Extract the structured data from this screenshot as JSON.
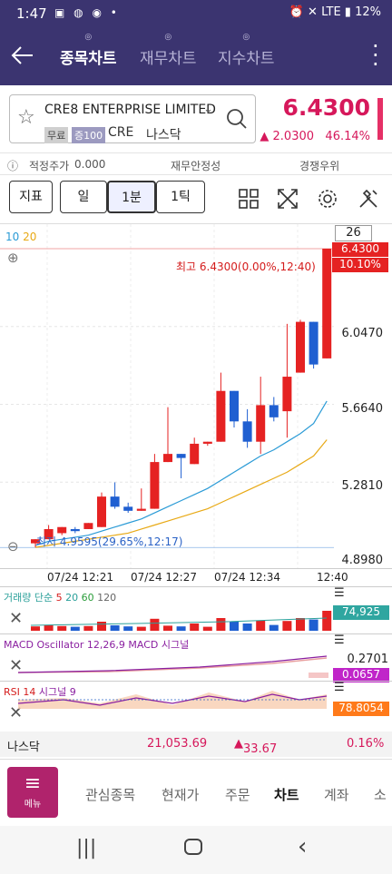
{
  "status": {
    "time": "1:47",
    "battery": "12%",
    "network": "LTE"
  },
  "nav": {
    "tabs": [
      "종목차트",
      "재무차트",
      "지수차트"
    ],
    "active": 0
  },
  "stock": {
    "name": "CRE8 ENTERPRISE LIMITED",
    "badge_free": "무료",
    "badge_margin": "증100",
    "code": "CRE",
    "market": "나스닥",
    "price": "6.4300",
    "change": "2.0300",
    "change_pct": "46.14%"
  },
  "info": {
    "fair_label": "적정주가",
    "fair_value": "0.000",
    "fin_label": "재무안정성",
    "comp_label": "경쟁우위"
  },
  "toolbar": {
    "indicator": "지표",
    "day": "일",
    "min": "1분",
    "tick": "1틱"
  },
  "chart_data": {
    "type": "candlestick",
    "ma_labels": [
      "10",
      "20"
    ],
    "count_box": "26",
    "y_ticks": [
      "6.0470",
      "5.6640",
      "5.2810",
      "4.8980"
    ],
    "y_range": [
      4.898,
      6.43
    ],
    "last_price_tag": "6.4300",
    "last_pct_tag": "10.10%",
    "high_label": "최고 6.4300(0.00%,12:40)",
    "low_label": "최저 4.9595(29.65%,12:17)",
    "x_ticks": [
      "07/24 12:21",
      "07/24 12:27",
      "07/24 12:34",
      "12:40"
    ],
    "candles": [
      {
        "o": 4.98,
        "c": 5.0,
        "h": 5.0,
        "l": 4.96
      },
      {
        "o": 5.0,
        "c": 5.05,
        "h": 5.07,
        "l": 5.0
      },
      {
        "o": 5.03,
        "c": 5.06,
        "h": 5.06,
        "l": 5.02
      },
      {
        "o": 5.05,
        "c": 5.04,
        "h": 5.06,
        "l": 5.03
      },
      {
        "o": 5.05,
        "c": 5.08,
        "h": 5.08,
        "l": 5.05
      },
      {
        "o": 5.06,
        "c": 5.21,
        "h": 5.23,
        "l": 5.06
      },
      {
        "o": 5.21,
        "c": 5.16,
        "h": 5.28,
        "l": 5.15
      },
      {
        "o": 5.16,
        "c": 5.14,
        "h": 5.18,
        "l": 5.13
      },
      {
        "o": 5.14,
        "c": 5.15,
        "h": 5.25,
        "l": 5.14
      },
      {
        "o": 5.15,
        "c": 5.38,
        "h": 5.42,
        "l": 5.15
      },
      {
        "o": 5.38,
        "c": 5.42,
        "h": 5.65,
        "l": 5.38
      },
      {
        "o": 5.42,
        "c": 5.4,
        "h": 5.42,
        "l": 5.3
      },
      {
        "o": 5.37,
        "c": 5.47,
        "h": 5.5,
        "l": 5.37
      },
      {
        "o": 5.47,
        "c": 5.48,
        "h": 5.48,
        "l": 5.46
      },
      {
        "o": 5.48,
        "c": 5.73,
        "h": 5.82,
        "l": 5.48
      },
      {
        "o": 5.73,
        "c": 5.58,
        "h": 5.73,
        "l": 5.55
      },
      {
        "o": 5.58,
        "c": 5.48,
        "h": 5.64,
        "l": 5.45
      },
      {
        "o": 5.48,
        "c": 5.66,
        "h": 5.8,
        "l": 5.42
      },
      {
        "o": 5.66,
        "c": 5.6,
        "h": 5.7,
        "l": 5.58
      },
      {
        "o": 5.63,
        "c": 5.8,
        "h": 6.06,
        "l": 5.5
      },
      {
        "o": 5.82,
        "c": 6.07,
        "h": 6.08,
        "l": 5.82
      },
      {
        "o": 6.07,
        "c": 5.86,
        "h": 6.07,
        "l": 5.84
      },
      {
        "o": 5.89,
        "c": 6.43,
        "h": 6.43,
        "l": 5.89
      }
    ],
    "ma10": [
      4.97,
      4.99,
      5.0,
      5.01,
      5.02,
      5.04,
      5.06,
      5.08,
      5.1,
      5.13,
      5.16,
      5.19,
      5.22,
      5.25,
      5.29,
      5.33,
      5.37,
      5.41,
      5.44,
      5.48,
      5.52,
      5.57,
      5.68
    ],
    "ma20": [
      4.96,
      4.97,
      4.98,
      4.99,
      5.0,
      5.01,
      5.02,
      5.03,
      5.05,
      5.07,
      5.09,
      5.11,
      5.13,
      5.15,
      5.18,
      5.21,
      5.24,
      5.27,
      5.3,
      5.33,
      5.37,
      5.41,
      5.49
    ]
  },
  "volume": {
    "title": "거래량 단순",
    "ma": [
      "5",
      "20",
      "60",
      "120"
    ],
    "value": "74,925"
  },
  "macd": {
    "title": "MACD Oscillator 12,26,9",
    "title2": "MACD 시그널",
    "value1": "0.2701",
    "value2": "0.0657"
  },
  "rsi": {
    "title": "RSI 14",
    "title2": "시그널 9",
    "value": "78.8054"
  },
  "index": {
    "name": "나스닥",
    "value": "21,053.69",
    "change": "33.67",
    "pct": "0.16%"
  },
  "bottom": {
    "menu": "메뉴",
    "items": [
      "관심종목",
      "현재가",
      "주문",
      "차트",
      "계좌",
      "소"
    ],
    "active": 3
  }
}
